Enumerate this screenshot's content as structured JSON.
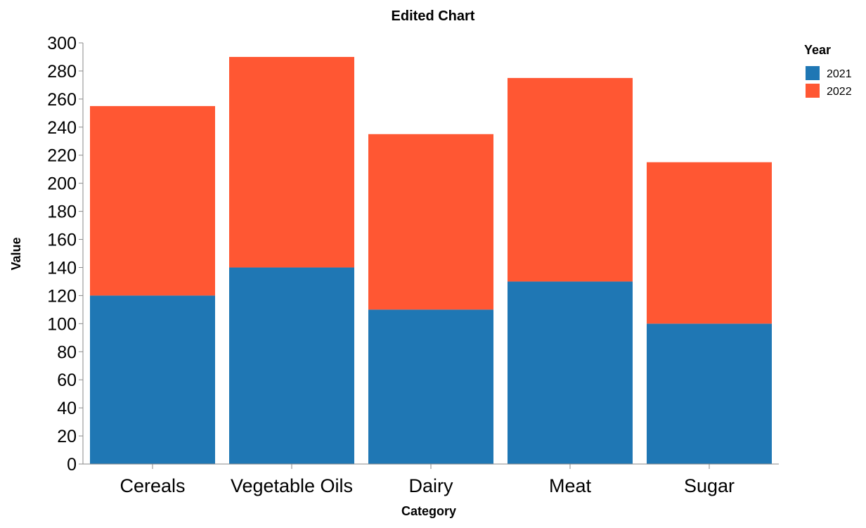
{
  "chart_data": {
    "type": "bar",
    "stacked": true,
    "title": "Edited Chart",
    "xlabel": "Category",
    "ylabel": "Value",
    "categories": [
      "Cereals",
      "Vegetable Oils",
      "Dairy",
      "Meat",
      "Sugar"
    ],
    "series": [
      {
        "name": "2021",
        "color": "#1f77b4",
        "values": [
          120,
          140,
          110,
          130,
          100
        ]
      },
      {
        "name": "2022",
        "color": "#ff5733",
        "values": [
          135,
          150,
          125,
          145,
          115
        ]
      }
    ],
    "ylim": [
      0,
      300
    ],
    "yticks": [
      0,
      20,
      40,
      60,
      80,
      100,
      120,
      140,
      160,
      180,
      200,
      220,
      240,
      260,
      280,
      300
    ],
    "grid": false,
    "legend": {
      "title": "Year",
      "placement": "top-right"
    }
  }
}
